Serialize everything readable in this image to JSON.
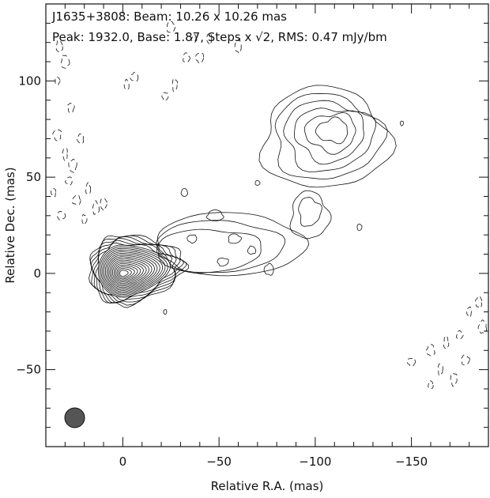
{
  "chart_data": {
    "type": "contour",
    "title": "J1635+3808: Beam: 10.26 x 10.26 mas",
    "subtitle_prefix": "Peak: 1932.0, Base: 1.87, Steps x ",
    "subtitle_sqrt": "√2",
    "subtitle_suffix": ", RMS: 0.47 mJy/bm",
    "source": "J1635+3808",
    "beam_major_mas": 10.26,
    "beam_minor_mas": 10.26,
    "beam_center": [
      25,
      -75
    ],
    "peak": 1932.0,
    "base": 1.87,
    "step_factor": 1.41421356,
    "rms": 0.47,
    "xlabel": "Relative R.A. (mas)",
    "ylabel": "Relative Dec. (mas)",
    "xlim": [
      40,
      -190
    ],
    "ylim": [
      -90,
      140
    ],
    "xticks": [
      0,
      -50,
      -100,
      -150
    ],
    "xtick_labels": [
      "0",
      "−50",
      "−100",
      "−150"
    ],
    "yticks": [
      -50,
      0,
      50,
      100
    ],
    "ytick_labels": [
      "−50",
      "0",
      "50",
      "100"
    ],
    "core_position": [
      0,
      0
    ],
    "components": [
      {
        "name": "core",
        "center": [
          0,
          0
        ]
      },
      {
        "name": "jet",
        "center": [
          -50,
          15
        ]
      },
      {
        "name": "lobe",
        "center": [
          -105,
          70
        ]
      }
    ]
  }
}
